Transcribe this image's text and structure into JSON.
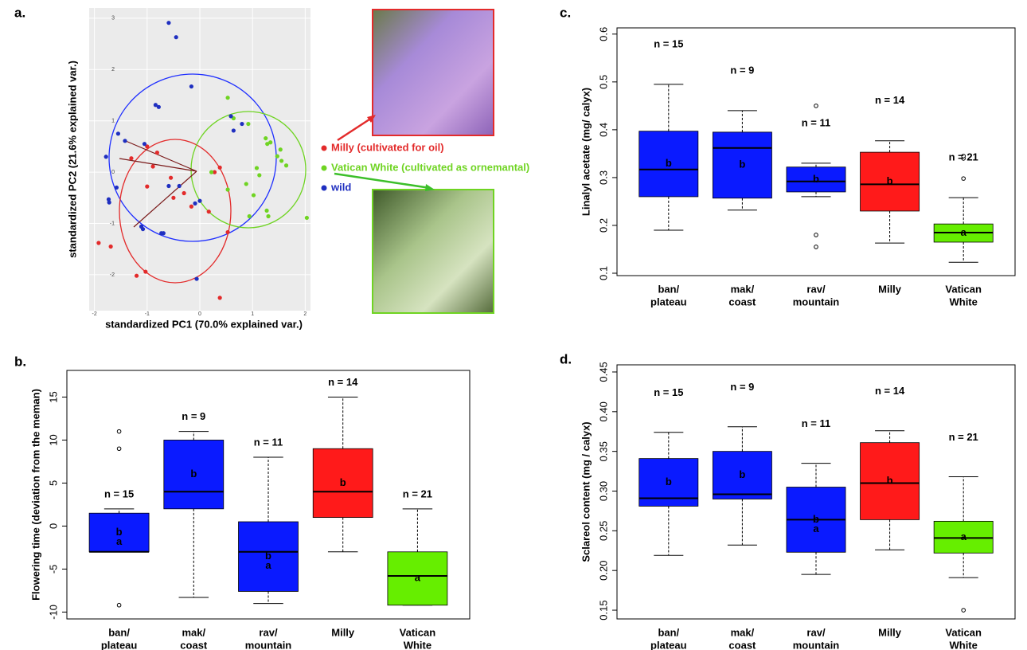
{
  "chart_data": [
    {
      "type": "scatter",
      "label": "a.",
      "x_label": "standardized PC1 (70.0% explained var.)",
      "y_label": "standardized PC2 (21.6% explained var.)",
      "xlim": [
        -2.1,
        2.1
      ],
      "ylim": [
        -2.7,
        3.2
      ],
      "xticks": [
        -2,
        -1,
        0,
        1,
        2
      ],
      "yticks": [
        -2,
        -1,
        0,
        1,
        2,
        3
      ],
      "grid": true,
      "series": [
        {
          "name": "Milly (cultivated for oil)",
          "color": "#e32b2b",
          "x": [
            -1.92,
            -1.69,
            -1.2,
            -1.03,
            0.38,
            0.53,
            0.17,
            0.28,
            -0.55,
            -0.5,
            -0.81,
            -1.0,
            -1.3,
            -1.0,
            0.38,
            -0.3,
            -0.16,
            -0.89
          ],
          "y": [
            -1.38,
            -1.45,
            -2.02,
            -1.94,
            -2.45,
            -1.17,
            -0.77,
            0.0,
            -0.11,
            -0.5,
            0.38,
            0.5,
            0.27,
            -0.28,
            0.09,
            -0.41,
            -0.67,
            0.11
          ]
        },
        {
          "name": "Vatican White (cultivated as ornemantal)",
          "color": "#6fd422",
          "x": [
            0.53,
            0.64,
            0.92,
            1.25,
            1.28,
            1.53,
            1.47,
            1.55,
            1.64,
            1.08,
            1.13,
            1.02,
            1.27,
            1.3,
            2.03,
            0.94,
            0.53,
            0.88,
            0.22,
            1.34
          ],
          "y": [
            1.45,
            1.05,
            0.94,
            0.66,
            0.55,
            0.44,
            0.31,
            0.22,
            0.13,
            0.08,
            -0.06,
            -0.45,
            -0.75,
            -0.86,
            -0.89,
            -0.86,
            -0.34,
            -0.23,
            0.0,
            0.58
          ]
        },
        {
          "name": "wild",
          "color": "#1f2fc0",
          "x": [
            -0.59,
            -0.45,
            -0.16,
            -0.84,
            -0.78,
            -1.55,
            -1.42,
            -1.78,
            -1.58,
            -1.73,
            -1.72,
            -1.08,
            -1.11,
            -0.73,
            -0.69,
            -0.09,
            0.0,
            -0.06,
            0.8,
            0.59,
            0.64,
            -0.39,
            -1.05,
            -0.59
          ],
          "y": [
            2.91,
            2.63,
            1.67,
            1.31,
            1.27,
            0.75,
            0.61,
            0.3,
            -0.3,
            -0.53,
            -0.59,
            -1.11,
            -1.06,
            -1.19,
            -1.19,
            -0.61,
            -0.56,
            -2.08,
            0.94,
            1.09,
            0.81,
            -0.27,
            0.55,
            -0.27
          ]
        }
      ]
    },
    {
      "type": "box",
      "label": "b.",
      "y_label": "Flowering time (deviation from the meman)",
      "ylim": [
        -10.8,
        18.1
      ],
      "yticks": [
        -10,
        -5,
        0,
        5,
        10,
        15
      ],
      "categories": [
        [
          "ban/",
          "plateau"
        ],
        [
          "mak/",
          "coast"
        ],
        [
          "rav/",
          "mountain"
        ],
        [
          "Milly"
        ],
        [
          "Vatican",
          "White"
        ]
      ],
      "boxes": [
        {
          "n": "n = 15",
          "letters": [
            "b",
            "a"
          ],
          "color": "#0a1aff",
          "whisker_low": -3,
          "q1": -3,
          "median": -3,
          "q3": 1.5,
          "whisker_high": 2,
          "outliers": [
            11,
            9,
            -9.2
          ]
        },
        {
          "n": "n = 9",
          "letters": [
            "b"
          ],
          "color": "#0a1aff",
          "whisker_low": -8.3,
          "q1": 2,
          "median": 4,
          "q3": 10,
          "whisker_high": 11,
          "outliers": []
        },
        {
          "n": "n = 11",
          "letters": [
            "b",
            "a"
          ],
          "color": "#0a1aff",
          "whisker_low": -9,
          "q1": -7.6,
          "median": -3,
          "q3": 0.5,
          "whisker_high": 8,
          "outliers": []
        },
        {
          "n": "n = 14",
          "letters": [
            "b"
          ],
          "color": "#ff1a1a",
          "whisker_low": -3,
          "q1": 1,
          "median": 4,
          "q3": 9,
          "whisker_high": 15,
          "outliers": []
        },
        {
          "n": "n = 21",
          "letters": [
            "a"
          ],
          "color": "#66ee00",
          "whisker_low": -9.2,
          "q1": -9.2,
          "median": -5.8,
          "q3": -3,
          "whisker_high": 2,
          "outliers": []
        }
      ]
    },
    {
      "type": "box",
      "label": "c.",
      "y_label": "Linalyl acetate (mg/ calyx)",
      "ylim": [
        0.095,
        0.613
      ],
      "yticks": [
        0.1,
        0.2,
        0.3,
        0.4,
        0.5,
        0.6
      ],
      "categories": [
        [
          "ban/",
          "plateau"
        ],
        [
          "mak/",
          "coast"
        ],
        [
          "rav/",
          "mountain"
        ],
        [
          "Milly"
        ],
        [
          "Vatican",
          "White"
        ]
      ],
      "boxes": [
        {
          "n": "n = 15",
          "letters": [
            "b"
          ],
          "color": "#0a1aff",
          "whisker_low": 0.19,
          "q1": 0.26,
          "median": 0.317,
          "q3": 0.397,
          "whisker_high": 0.495,
          "outliers": []
        },
        {
          "n": "n = 9",
          "letters": [
            "b"
          ],
          "color": "#0a1aff",
          "whisker_low": 0.232,
          "q1": 0.257,
          "median": 0.362,
          "q3": 0.395,
          "whisker_high": 0.44,
          "outliers": []
        },
        {
          "n": "n = 11",
          "letters": [
            "b"
          ],
          "color": "#0a1aff",
          "whisker_low": 0.26,
          "q1": 0.27,
          "median": 0.292,
          "q3": 0.322,
          "whisker_high": 0.33,
          "outliers": [
            0.45,
            0.18,
            0.155
          ]
        },
        {
          "n": "n = 14",
          "letters": [
            "b"
          ],
          "color": "#ff1a1a",
          "whisker_low": 0.163,
          "q1": 0.23,
          "median": 0.286,
          "q3": 0.353,
          "whisker_high": 0.377,
          "outliers": []
        },
        {
          "n": "n = 21",
          "letters": [
            "a"
          ],
          "color": "#66ee00",
          "whisker_low": 0.123,
          "q1": 0.165,
          "median": 0.185,
          "q3": 0.203,
          "whisker_high": 0.258,
          "outliers": [
            0.298,
            0.34,
            0.345
          ]
        }
      ]
    },
    {
      "type": "box",
      "label": "d.",
      "y_label": "Sclareol content (mg / calyx)",
      "ylim": [
        0.139,
        0.459
      ],
      "yticks": [
        0.15,
        {
          "value": 0.2,
          "label": "0.20"
        },
        0.25,
        {
          "value": 0.3,
          "label": "0.30"
        },
        0.35,
        {
          "value": 0.4,
          "label": "0.40"
        },
        0.45
      ],
      "categories": [
        [
          "ban/",
          "plateau"
        ],
        [
          "mak/",
          "coast"
        ],
        [
          "rav/",
          "mountain"
        ],
        [
          "Milly"
        ],
        [
          "Vatican",
          "White"
        ]
      ],
      "boxes": [
        {
          "n": "n = 15",
          "letters": [
            "b"
          ],
          "color": "#0a1aff",
          "whisker_low": 0.219,
          "q1": 0.281,
          "median": 0.291,
          "q3": 0.341,
          "whisker_high": 0.374,
          "outliers": []
        },
        {
          "n": "n = 9",
          "letters": [
            "b"
          ],
          "color": "#0a1aff",
          "whisker_low": 0.232,
          "q1": 0.29,
          "median": 0.296,
          "q3": 0.35,
          "whisker_high": 0.381,
          "outliers": []
        },
        {
          "n": "n = 11",
          "letters": [
            "b",
            "a"
          ],
          "color": "#0a1aff",
          "whisker_low": 0.195,
          "q1": 0.223,
          "median": 0.264,
          "q3": 0.305,
          "whisker_high": 0.335,
          "outliers": []
        },
        {
          "n": "n = 14",
          "letters": [
            "b"
          ],
          "color": "#ff1a1a",
          "whisker_low": 0.226,
          "q1": 0.264,
          "median": 0.31,
          "q3": 0.361,
          "whisker_high": 0.376,
          "outliers": []
        },
        {
          "n": "n = 21",
          "letters": [
            "a"
          ],
          "color": "#66ee00",
          "whisker_low": 0.191,
          "q1": 0.222,
          "median": 0.241,
          "q3": 0.262,
          "whisker_high": 0.318,
          "outliers": [
            0.15
          ]
        }
      ]
    }
  ]
}
